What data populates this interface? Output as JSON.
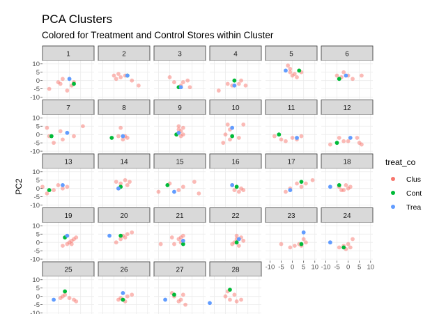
{
  "chart_data": {
    "type": "scatter",
    "title": "PCA Clusters",
    "subtitle": "Colored for Treatment and Control Stores within Cluster",
    "xlabel": "",
    "ylabel": "PC2",
    "xlim": [
      -12,
      11
    ],
    "ylim": [
      -11,
      12
    ],
    "x_ticks": [
      -10,
      -5,
      0,
      5,
      10
    ],
    "y_ticks": [
      -10,
      -5,
      0,
      5,
      10
    ],
    "x_tick_labels": [
      "-10",
      "-5",
      "0",
      "5",
      "10"
    ],
    "y_tick_labels": [
      "-10",
      "-5",
      "0",
      "5",
      "10"
    ],
    "grid": true,
    "legend": {
      "title": "treat_co",
      "position": "right",
      "entries": [
        {
          "label": "Clus",
          "color": "#F8766D"
        },
        {
          "label": "Cont",
          "color": "#00BA38"
        },
        {
          "label": "Trea",
          "color": "#619CFF"
        }
      ]
    },
    "facets": [
      {
        "label": "1",
        "cluster": [
          [
            -9,
            -5
          ],
          [
            -5,
            -1
          ],
          [
            -3,
            1
          ],
          [
            1,
            -3
          ],
          [
            2,
            -1
          ],
          [
            -1,
            -6
          ],
          [
            -4,
            -2
          ]
        ],
        "control": [
          [
            2,
            -2
          ]
        ],
        "treatment": [
          [
            0,
            1
          ]
        ]
      },
      {
        "label": "2",
        "cluster": [
          [
            -5,
            3
          ],
          [
            -4,
            1
          ],
          [
            -3,
            4
          ],
          [
            -2,
            2
          ],
          [
            0,
            3
          ],
          [
            3,
            0
          ],
          [
            6,
            -3
          ]
        ],
        "control": [
          [
            1,
            3
          ]
        ],
        "treatment": [
          [
            1,
            3
          ]
        ]
      },
      {
        "label": "3",
        "cluster": [
          [
            -5,
            2
          ],
          [
            -3,
            -1
          ],
          [
            0,
            -3
          ],
          [
            1,
            -1
          ],
          [
            3,
            0
          ],
          [
            4,
            -4
          ]
        ],
        "control": [
          [
            -1,
            -4
          ]
        ],
        "treatment": [
          [
            0,
            -4
          ]
        ]
      },
      {
        "label": "4",
        "cluster": [
          [
            -8,
            -6
          ],
          [
            -4,
            -2
          ],
          [
            -2,
            -3
          ],
          [
            1,
            -2
          ],
          [
            4,
            -3
          ],
          [
            2,
            0
          ]
        ],
        "control": [
          [
            -1,
            0
          ]
        ],
        "treatment": [
          [
            -1,
            -3
          ]
        ]
      },
      {
        "label": "5",
        "cluster": [
          [
            -2,
            9
          ],
          [
            -1,
            5
          ],
          [
            0,
            3
          ],
          [
            1,
            4
          ],
          [
            2,
            2
          ],
          [
            3,
            6
          ],
          [
            4,
            5
          ],
          [
            -1,
            7
          ]
        ],
        "control": [
          [
            3,
            6
          ]
        ],
        "treatment": [
          [
            -3,
            6
          ]
        ]
      },
      {
        "label": "6",
        "cluster": [
          [
            -5,
            3
          ],
          [
            -3,
            2
          ],
          [
            -2,
            5
          ],
          [
            0,
            3
          ],
          [
            2,
            1
          ],
          [
            6,
            3
          ]
        ],
        "control": [
          [
            -4,
            1
          ]
        ],
        "treatment": [
          [
            -1,
            3
          ]
        ]
      },
      {
        "label": "7",
        "cluster": [
          [
            -10,
            4
          ],
          [
            -9,
            -1
          ],
          [
            -7,
            -5
          ],
          [
            -4,
            2
          ],
          [
            -3,
            -3
          ],
          [
            2,
            -1
          ],
          [
            6,
            5
          ]
        ],
        "control": [
          [
            -8,
            -1
          ]
        ],
        "treatment": [
          [
            -1,
            1
          ]
        ]
      },
      {
        "label": "8",
        "cluster": [
          [
            -2,
            4
          ],
          [
            -1,
            -3
          ],
          [
            0,
            -1
          ],
          [
            1,
            -2
          ],
          [
            -3,
            -1
          ]
        ],
        "control": [
          [
            -6,
            -2
          ]
        ],
        "treatment": [
          [
            -1,
            -1
          ]
        ]
      },
      {
        "label": "9",
        "cluster": [
          [
            -1,
            5
          ],
          [
            -1,
            3
          ],
          [
            0,
            2
          ],
          [
            1,
            4
          ],
          [
            0,
            -1
          ],
          [
            1,
            0
          ],
          [
            -2,
            0
          ]
        ],
        "control": [
          [
            -2,
            0
          ]
        ],
        "treatment": [
          [
            -1,
            1
          ]
        ]
      },
      {
        "label": "10",
        "cluster": [
          [
            -6,
            -5
          ],
          [
            -3,
            -3
          ],
          [
            -5,
            0
          ],
          [
            1,
            -2
          ],
          [
            3,
            6
          ],
          [
            -3,
            3
          ],
          [
            -4,
            6
          ]
        ],
        "control": [
          [
            -2,
            -1
          ]
        ],
        "treatment": [
          [
            -2,
            4
          ]
        ]
      },
      {
        "label": "11",
        "cluster": [
          [
            -8,
            -1
          ],
          [
            -5,
            -3
          ],
          [
            -3,
            -4
          ],
          [
            0,
            -2
          ],
          [
            2,
            -3
          ],
          [
            4,
            -1
          ]
        ],
        "control": [
          [
            -6,
            0
          ]
        ],
        "treatment": [
          [
            2,
            -2
          ]
        ]
      },
      {
        "label": "12",
        "cluster": [
          [
            -8,
            -6
          ],
          [
            -4,
            -2
          ],
          [
            -2,
            -4
          ],
          [
            0,
            -4
          ],
          [
            4,
            -2
          ],
          [
            6,
            -6
          ],
          [
            5,
            -5
          ]
        ],
        "control": [
          [
            -5,
            -5
          ]
        ],
        "treatment": [
          [
            1,
            -2
          ]
        ]
      },
      {
        "label": "13",
        "cluster": [
          [
            -12,
            1
          ],
          [
            -10,
            -3
          ],
          [
            -7,
            -1
          ],
          [
            -5,
            2
          ],
          [
            -3,
            0
          ],
          [
            -1,
            1
          ]
        ],
        "control": [
          [
            -9,
            -1
          ]
        ],
        "treatment": [
          [
            -3,
            2
          ]
        ]
      },
      {
        "label": "14",
        "cluster": [
          [
            -4,
            4
          ],
          [
            -2,
            3
          ],
          [
            0,
            5
          ],
          [
            1,
            2
          ],
          [
            -3,
            0
          ],
          [
            2,
            4
          ]
        ],
        "control": [
          [
            -2,
            1
          ]
        ],
        "treatment": [
          [
            -3,
            0
          ]
        ]
      },
      {
        "label": "15",
        "cluster": [
          [
            -10,
            -2
          ],
          [
            -5,
            3
          ],
          [
            -1,
            -1
          ],
          [
            1,
            1
          ],
          [
            6,
            4
          ],
          [
            8,
            -3
          ]
        ],
        "control": [
          [
            -6,
            2
          ]
        ],
        "treatment": [
          [
            -3,
            -2
          ]
        ]
      },
      {
        "label": "16",
        "cluster": [
          [
            -2,
            2
          ],
          [
            -1,
            -1
          ],
          [
            0,
            1
          ],
          [
            1,
            -2
          ],
          [
            2,
            0
          ],
          [
            3,
            -1
          ]
        ],
        "control": [
          [
            0,
            1
          ]
        ],
        "treatment": [
          [
            -2,
            2
          ]
        ]
      },
      {
        "label": "17",
        "cluster": [
          [
            -3,
            -2
          ],
          [
            -1,
            0
          ],
          [
            2,
            3
          ],
          [
            4,
            1
          ],
          [
            9,
            5
          ],
          [
            6,
            3
          ]
        ],
        "control": [
          [
            4,
            4
          ]
        ],
        "treatment": [
          [
            -1,
            -1
          ]
        ]
      },
      {
        "label": "18",
        "cluster": [
          [
            -4,
            1
          ],
          [
            -2,
            -1
          ],
          [
            -1,
            2
          ],
          [
            0,
            0
          ],
          [
            1,
            1
          ],
          [
            -3,
            -1
          ]
        ],
        "control": [
          [
            -4,
            2
          ]
        ],
        "treatment": [
          [
            -8,
            1
          ]
        ]
      },
      {
        "label": "19",
        "cluster": [
          [
            -3,
            -2
          ],
          [
            -1,
            -1
          ],
          [
            0,
            0
          ],
          [
            1,
            1
          ],
          [
            2,
            2
          ],
          [
            3,
            3
          ],
          [
            1,
            -1
          ]
        ],
        "control": [
          [
            -2,
            3
          ]
        ],
        "treatment": [
          [
            -1,
            4
          ]
        ]
      },
      {
        "label": "20",
        "cluster": [
          [
            -4,
            0
          ],
          [
            -2,
            2
          ],
          [
            0,
            3
          ],
          [
            1,
            5
          ],
          [
            3,
            6
          ],
          [
            -1,
            4
          ]
        ],
        "control": [
          [
            -2,
            4
          ]
        ],
        "treatment": [
          [
            -7,
            4
          ]
        ]
      },
      {
        "label": "21",
        "cluster": [
          [
            -9,
            -1
          ],
          [
            -3,
            -1
          ],
          [
            -1,
            2
          ],
          [
            0,
            3
          ],
          [
            1,
            4
          ],
          [
            -4,
            3
          ],
          [
            0,
            0
          ]
        ],
        "control": [
          [
            1,
            -1
          ]
        ],
        "treatment": [
          [
            1,
            1
          ]
        ]
      },
      {
        "label": "22",
        "cluster": [
          [
            -2,
            -1
          ],
          [
            0,
            2
          ],
          [
            1,
            -2
          ],
          [
            2,
            3
          ],
          [
            3,
            1
          ],
          [
            -1,
            0
          ],
          [
            0,
            4
          ]
        ],
        "control": [
          [
            0,
            0
          ]
        ],
        "treatment": [
          [
            1,
            2
          ]
        ]
      },
      {
        "label": "23",
        "cluster": [
          [
            -5,
            -1
          ],
          [
            -1,
            -3
          ],
          [
            1,
            -2
          ],
          [
            3,
            -1
          ],
          [
            4,
            -2
          ],
          [
            6,
            0
          ],
          [
            5,
            2
          ]
        ],
        "control": [
          [
            4,
            -1
          ]
        ],
        "treatment": [
          [
            5,
            6
          ]
        ]
      },
      {
        "label": "24",
        "cluster": [
          [
            -4,
            -3
          ],
          [
            -2,
            -2
          ],
          [
            0,
            -1
          ],
          [
            2,
            2
          ],
          [
            1,
            -3
          ],
          [
            -1,
            -4
          ]
        ],
        "control": [
          [
            -2,
            -3
          ]
        ],
        "treatment": [
          [
            -8,
            0
          ]
        ]
      },
      {
        "label": "25",
        "cluster": [
          [
            -3,
            0
          ],
          [
            -2,
            1
          ],
          [
            0,
            -1
          ],
          [
            2,
            -2
          ],
          [
            3,
            -3
          ],
          [
            -4,
            -1
          ]
        ],
        "control": [
          [
            -2,
            3
          ]
        ],
        "treatment": [
          [
            -7,
            -2
          ]
        ]
      },
      {
        "label": "26",
        "cluster": [
          [
            -3,
            -2
          ],
          [
            -2,
            -1
          ],
          [
            0,
            -3
          ],
          [
            1,
            0
          ],
          [
            3,
            1
          ],
          [
            -1,
            -2
          ]
        ],
        "control": [
          [
            -1,
            -2
          ]
        ],
        "treatment": [
          [
            -1,
            2
          ]
        ]
      },
      {
        "label": "27",
        "cluster": [
          [
            -4,
            2
          ],
          [
            -3,
            0
          ],
          [
            -1,
            -3
          ],
          [
            0,
            -2
          ],
          [
            2,
            -5
          ],
          [
            1,
            1
          ]
        ],
        "control": [
          [
            -3,
            1
          ]
        ],
        "treatment": [
          [
            -7,
            -2
          ]
        ]
      },
      {
        "label": "28",
        "cluster": [
          [
            -5,
            0
          ],
          [
            -3,
            -2
          ],
          [
            -1,
            1
          ],
          [
            0,
            -3
          ],
          [
            2,
            -2
          ],
          [
            -4,
            3
          ]
        ],
        "control": [
          [
            -3,
            4
          ]
        ],
        "treatment": [
          [
            -12,
            -4
          ]
        ]
      }
    ]
  }
}
